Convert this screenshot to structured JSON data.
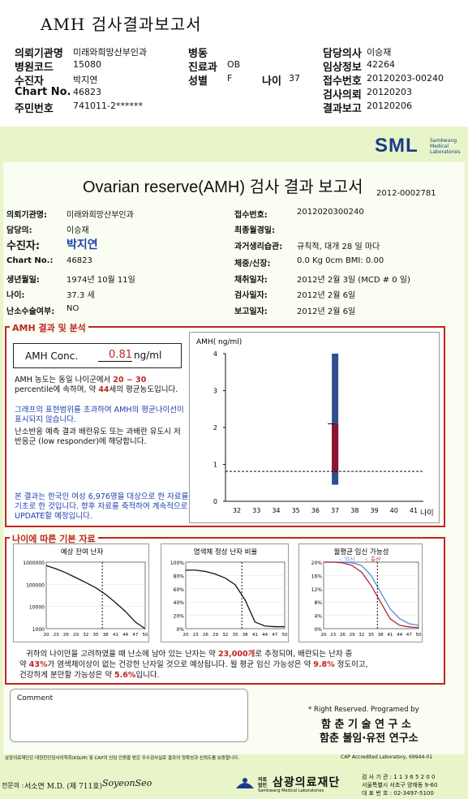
{
  "header": {
    "title": "AMH 검사결과보고서",
    "rows": [
      [
        [
          "의뢰기관명",
          "미래와희망산부인과"
        ],
        [
          "병동",
          ""
        ],
        [
          "담당의사",
          "이승재"
        ]
      ],
      [
        [
          "병원코드",
          "15080"
        ],
        [
          "진료과",
          "OB"
        ],
        [
          "임상정보",
          "42264"
        ]
      ],
      [
        [
          "수진자",
          "박지연"
        ],
        [
          "성별",
          "F"
        ],
        [
          "접수번호",
          "20120203-00240"
        ]
      ],
      [
        [
          "Chart No.",
          "46823"
        ],
        [
          "",
          ""
        ],
        [
          "검사의뢰",
          "20120203"
        ]
      ],
      [
        [
          "주민번호",
          "741011-2******"
        ],
        [
          "",
          ""
        ],
        [
          "결과보고",
          "20120206"
        ]
      ]
    ],
    "age_label": "나이",
    "age_value": "37"
  },
  "brand": {
    "logo": "SML",
    "logo_sub": "Samkwang Medical Laboratories"
  },
  "report": {
    "title": "Ovarian reserve(AMH) 검사 결과 보고서",
    "doc_no": "2012-0002781",
    "left": [
      [
        "의뢰기관명:",
        "미래와희망산부인과"
      ],
      [
        "담당의:",
        "이승재"
      ],
      [
        "수진자:",
        "박지연"
      ],
      [
        "Chart No.:",
        "46823"
      ],
      [
        "생년월일:",
        "1974년 10월 11일"
      ],
      [
        "나이:",
        "37.3 세"
      ],
      [
        "난소수술여부:",
        "NO"
      ]
    ],
    "right": [
      [
        "접수번호:",
        "2012020300240"
      ],
      [
        "최종월경일:",
        ""
      ],
      [
        "과거생리습관:",
        "규칙적, 대개   28 일 마다"
      ],
      [
        "체중/신장:",
        "0.0 Kg      0cm   BMI:     0.00"
      ],
      [
        "채취일자:",
        "2012년 2월 3일     (MCD #  0 일)"
      ],
      [
        "검사일자:",
        "2012년 2월 6일"
      ],
      [
        "보고일자:",
        "2012년 2월 6일"
      ]
    ]
  },
  "amh": {
    "section_title": "AMH 결과 및 분석",
    "conc_label": "AMH Conc.",
    "conc_value": "0.81",
    "conc_unit": "ng/ml",
    "p1a": "AMH 농도는 동일 나이군에서",
    "p1_range": "20 ~ 30",
    "p1b": "percentile에 속하며, 약",
    "p1_age": "44",
    "p1c": "세의 평균농도입니다.",
    "p2": "그래프의 표현범위를 초과하여 AMH의 평균나이선이 표시되지 않습니다.",
    "p3": "난소반응 예측 결과 배란유도 또는 과배란 유도시 저반응군 (low responder)에 해당합니다.",
    "p4": "본 결과는 한국인 여성 6,976명을 대상으로 한 자료를 기초로 한 것입니다. 향후 자료를 축적하여 계속적으로 UPDATE할 예정입니다."
  },
  "chart_data": [
    {
      "type": "bar",
      "title": "",
      "ylabel": "AMH( ng/ml)",
      "xlabel": "나이",
      "categories": [
        "32",
        "33",
        "34",
        "35",
        "36",
        "37",
        "38",
        "39",
        "40",
        "41"
      ],
      "yticks": [
        "0",
        "1",
        "2",
        "3",
        "4"
      ],
      "ylim": [
        0,
        4
      ],
      "range_bar": {
        "x": "37",
        "low": 0.45,
        "high": 4.0
      },
      "box": {
        "x": "37",
        "low": 0.8,
        "high": 2.1
      },
      "reference_line": 0.81
    },
    {
      "type": "line",
      "title": "예상 잔여 난자",
      "x": [
        20,
        23,
        26,
        29,
        32,
        35,
        38,
        41,
        44,
        47,
        50
      ],
      "yticks": [
        "1000000",
        "100000",
        "10000",
        "1000"
      ],
      "yscale": "log",
      "values": [
        700000,
        500000,
        330000,
        200000,
        120000,
        70000,
        35000,
        15000,
        6000,
        2000,
        1000
      ],
      "marker_x": 37
    },
    {
      "type": "line",
      "title": "염색체 정상 난자 비율",
      "x": [
        20,
        23,
        26,
        29,
        32,
        35,
        38,
        41,
        44,
        47,
        50
      ],
      "yticks": [
        "100%",
        "80%",
        "60%",
        "40%",
        "20%",
        "0%"
      ],
      "values": [
        88,
        88,
        86,
        82,
        76,
        66,
        43,
        10,
        4,
        3,
        3
      ],
      "marker_x": 37
    },
    {
      "type": "line",
      "title": "월평균 임신 가능성",
      "legend": [
        "임신",
        "출산"
      ],
      "x": [
        20,
        23,
        26,
        29,
        32,
        35,
        38,
        41,
        44,
        47,
        50
      ],
      "yticks": [
        "20%",
        "16%",
        "12%",
        "8%",
        "4%",
        "0%"
      ],
      "series": [
        {
          "name": "임신",
          "values": [
            20,
            20,
            20,
            19.8,
            19,
            16,
            11,
            6,
            3,
            1.5,
            1
          ]
        },
        {
          "name": "출산",
          "values": [
            20,
            20,
            19.8,
            19,
            17,
            13,
            8,
            3,
            1,
            0.5,
            0.3
          ]
        }
      ],
      "marker_x": 37
    }
  ],
  "basic": {
    "section_title": "나이에 따른 기본 자료",
    "summary1a": "귀하의 나이만을 고려하였을 때 난소에 남아 있는 난자는 약",
    "summary_eggs": "23,000개",
    "summary1b": "로 추정되며, 배란되는 난자 중",
    "summary2a": "약",
    "summary_pct": "43%",
    "summary2b": "가 염색체이상이 없는 건강한 난자일 것으로 예상됩니다. 월 평균 임신 가능성은 약",
    "summary_preg": "9.8%",
    "summary2c": "정도이고,",
    "summary3a": "건강하게 분만할 가능성은 약",
    "summary_birth": "5.6%",
    "summary3b": "입니다."
  },
  "comment_label": "Comment",
  "rights": {
    "line1": "* Right Reserved. Programed by",
    "line2": "함 춘  기 술  연 구 소",
    "line3": "함춘 불임·유전 연구소"
  },
  "footer": {
    "cert": "삼광의료재단은 대한진단검사의학회(KSLM) 및 CAP의 신임 인증을 받은 우수검사실로 결과의 정확성과 신뢰도를 보증합니다.",
    "cap": "CAP Accredited Laboratory, 69944-01",
    "doctor_label": "전문의 :",
    "doctor": "서소연 M.D. (제 711호)",
    "signature": "SoyeonSeo",
    "org": "삼광의료재단",
    "org_en": "Samkwang Medical Laboratories",
    "org_badge": "의료법인",
    "phone_label": "검 사 기 관 : 1 1 3 6 5 2 0 0",
    "address": "서울특별시 서초구 양재동 9-60",
    "tel": "대 표 번 호 : 02-3497-5100"
  },
  "colors": {
    "accent_red": "#c0261f",
    "brand_blue": "#1a3a8c",
    "bar_blue": "#2f4f8f",
    "box_red": "#8a1530",
    "bg_green": "#e8f5c8"
  }
}
